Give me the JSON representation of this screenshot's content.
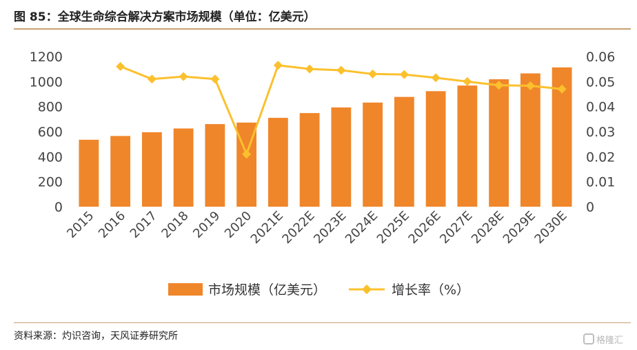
{
  "title": "图 85：全球生命综合解决方案市场规模（单位：亿美元）",
  "source": "资料来源：灼识咨询，天风证券研究所",
  "watermark": {
    "text": "格隆汇",
    "icon": "gelonghui-logo-icon"
  },
  "colors": {
    "bar": "#F0862A",
    "line": "#FBC02D",
    "rule": "#C9A070"
  },
  "chart_data": {
    "type": "bar",
    "categories": [
      "2015",
      "2016",
      "2017",
      "2018",
      "2019",
      "2020",
      "2021E",
      "2022E",
      "2023E",
      "2024E",
      "2025E",
      "2026E",
      "2027E",
      "2028E",
      "2029E",
      "2030E"
    ],
    "series": [
      {
        "name": "市场规模（亿美元）",
        "type": "bar",
        "axis": "left",
        "values": [
          535,
          565,
          595,
          625,
          660,
          672,
          710,
          748,
          793,
          832,
          877,
          923,
          968,
          1018,
          1065,
          1113
        ]
      },
      {
        "name": "增长率（%）",
        "type": "line",
        "axis": "right",
        "values": [
          null,
          0.056,
          0.051,
          0.052,
          0.051,
          0.021,
          0.0565,
          0.055,
          0.0545,
          0.053,
          0.0528,
          0.0515,
          0.05,
          0.0485,
          0.0483,
          0.047
        ]
      }
    ],
    "y_left": {
      "lim": [
        0,
        1200
      ],
      "ticks": [
        "0",
        "200",
        "400",
        "600",
        "800",
        "1000",
        "1200"
      ]
    },
    "y_right": {
      "lim": [
        0,
        0.06
      ],
      "ticks": [
        "0",
        "0.01",
        "0.02",
        "0.03",
        "0.04",
        "0.05",
        "0.06"
      ]
    },
    "grid": false,
    "legend": "bottom"
  }
}
